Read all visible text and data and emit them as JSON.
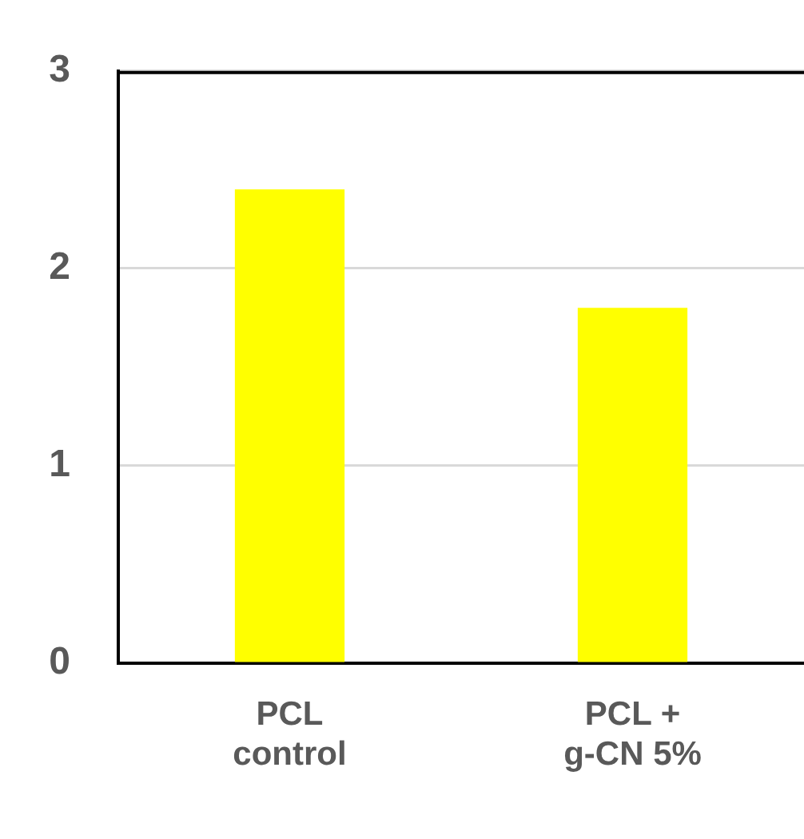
{
  "chart_data": {
    "type": "bar",
    "categories": [
      "PCL control",
      "PCL + g-CN 5%"
    ],
    "values": [
      2.4,
      1.8
    ],
    "color": "#ffff00",
    "ylim": [
      0,
      3
    ],
    "yticks": [
      0,
      1,
      2,
      3
    ],
    "grid": "y"
  }
}
